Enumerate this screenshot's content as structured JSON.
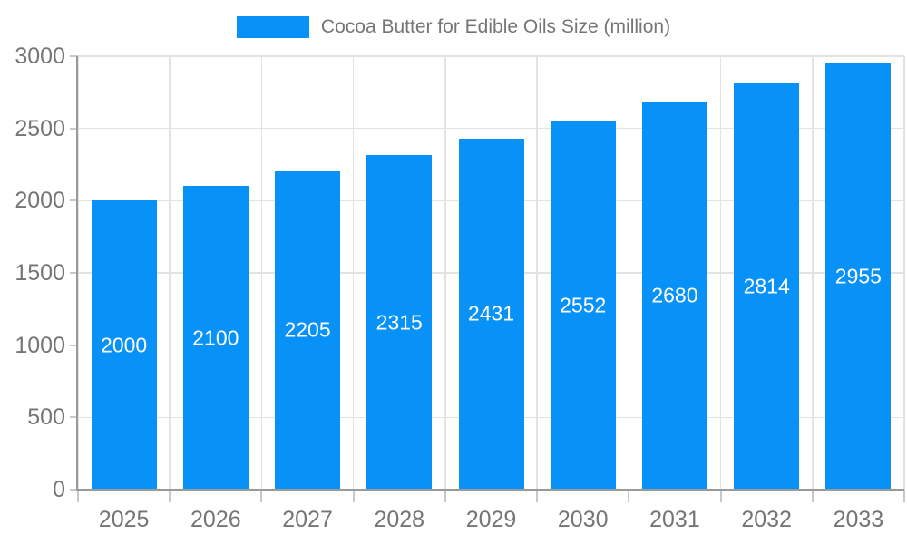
{
  "legend": {
    "swatch_color": "#0892f8",
    "label": "Cocoa Butter for Edible Oils Size (million)"
  },
  "chart_data": {
    "type": "bar",
    "title": "Cocoa Butter for Edible Oils Size (million)",
    "categories": [
      "2025",
      "2026",
      "2027",
      "2028",
      "2029",
      "2030",
      "2031",
      "2032",
      "2033"
    ],
    "values": [
      2000,
      2100,
      2205,
      2315,
      2431,
      2552,
      2680,
      2814,
      2955
    ],
    "series": [
      {
        "name": "Cocoa Butter for Edible Oils Size (million)",
        "values": [
          2000,
          2100,
          2205,
          2315,
          2431,
          2552,
          2680,
          2814,
          2955
        ]
      }
    ],
    "xlabel": "",
    "ylabel": "",
    "ylim": [
      0,
      3000
    ],
    "yticks": [
      0,
      500,
      1000,
      1500,
      2000,
      2500,
      3000
    ],
    "grid": true,
    "legend_position": "top-center",
    "bar_labels_position": "middle-inside",
    "bar_color": "#0892f8",
    "bar_label_color": "#ffffff",
    "axis_text_color": "#757575",
    "axis_line_color": "#9a9a9a",
    "gridline_color": "#e3e3e3",
    "tick_color": "#c8c8c8",
    "background_color": "#ffffff"
  }
}
